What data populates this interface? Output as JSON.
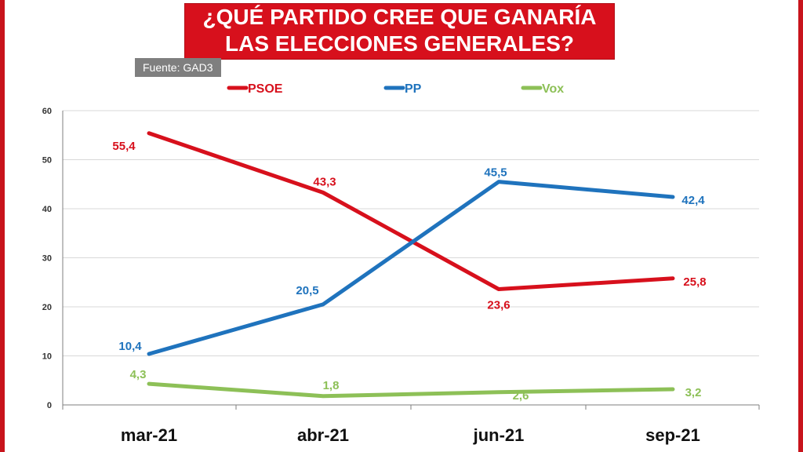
{
  "title": {
    "line1": "¿QUÉ PARTIDO CREE QUE GANARÍA",
    "line2": "LAS ELECCIONES GENERALES?"
  },
  "source": "Fuente: GAD3",
  "colors": {
    "title_bg": "#d7101c",
    "psoe": "#d7101c",
    "pp": "#1f73bd",
    "vox": "#8dc057"
  },
  "chart_data": {
    "type": "line",
    "categories": [
      "mar-21",
      "abr-21",
      "jun-21",
      "sep-21"
    ],
    "ylim": [
      0,
      60
    ],
    "yticks": [
      0,
      10,
      20,
      30,
      40,
      50,
      60
    ],
    "grid": true,
    "legend_position": "top",
    "series": [
      {
        "name": "PSOE",
        "color": "#d7101c",
        "values": [
          55.4,
          43.3,
          23.6,
          25.8
        ],
        "labels": [
          "55,4",
          "43,3",
          "23,6",
          "25,8"
        ]
      },
      {
        "name": "PP",
        "color": "#1f73bd",
        "values": [
          10.4,
          20.5,
          45.5,
          42.4
        ],
        "labels": [
          "10,4",
          "20,5",
          "45,5",
          "42,4"
        ]
      },
      {
        "name": "Vox",
        "color": "#8dc057",
        "values": [
          4.3,
          1.8,
          2.6,
          3.2
        ],
        "labels": [
          "4,3",
          "1,8",
          "2,6",
          "3,2"
        ]
      }
    ]
  }
}
